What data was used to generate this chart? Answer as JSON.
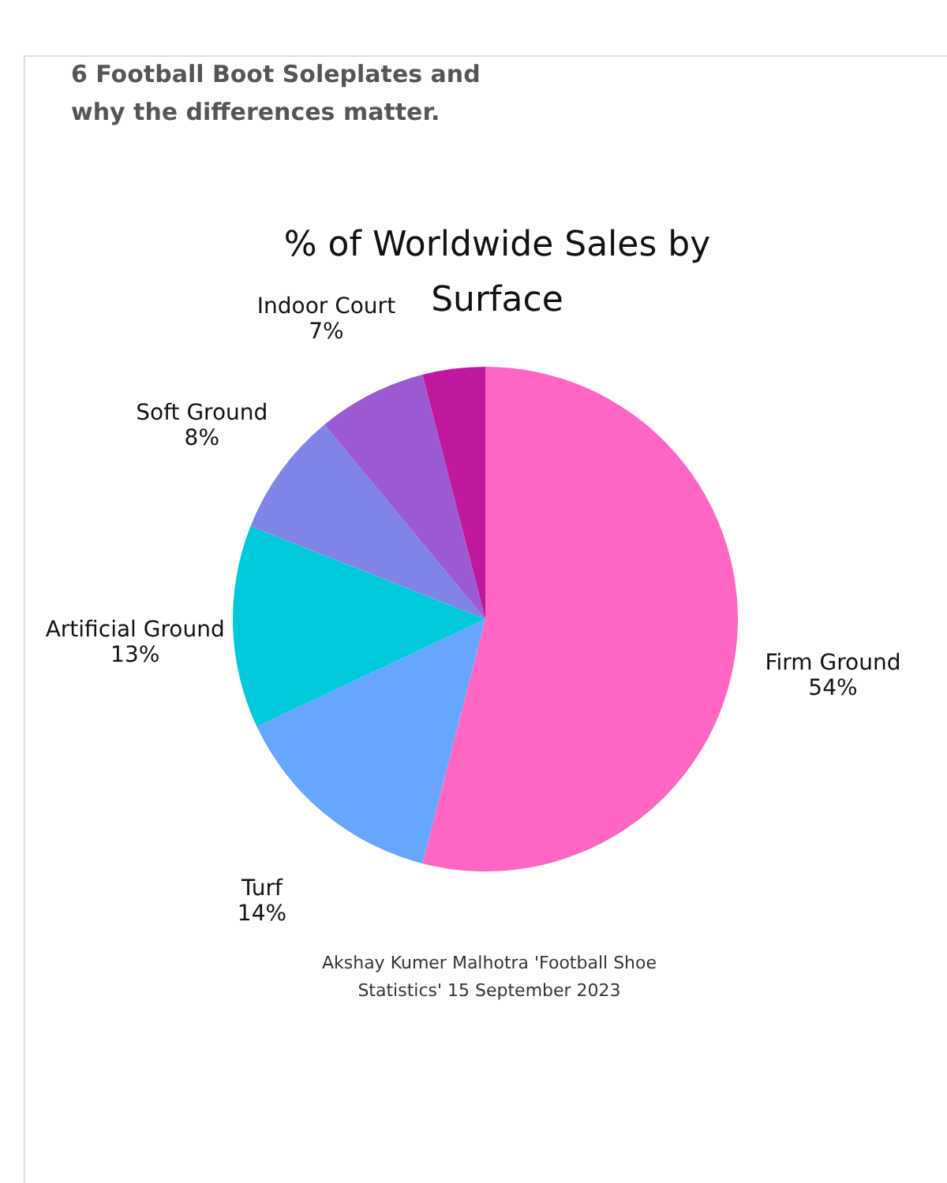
{
  "chart_data": {
    "type": "pie",
    "title": "6 Football Boot Soleplates and why the differences matter.",
    "subtitle": "% of Worldwide Sales by Surface",
    "categories": [
      "Firm Ground",
      "Turf",
      "Artificial Ground",
      "Soft Ground",
      "Indoor Court",
      null
    ],
    "values": [
      54,
      14,
      13,
      8,
      7,
      4
    ],
    "value_labels": [
      "54%",
      "14%",
      "13%",
      "8%",
      "7%",
      null
    ],
    "colors": [
      "#ff66c4",
      "#66a6ff",
      "#00c9db",
      "#7f84e6",
      "#9c5ad2",
      "#c0179f"
    ],
    "annotations": [
      "Akshay Kumer Malhotra 'Football Shoe Statistics' 15 September 2023"
    ]
  }
}
